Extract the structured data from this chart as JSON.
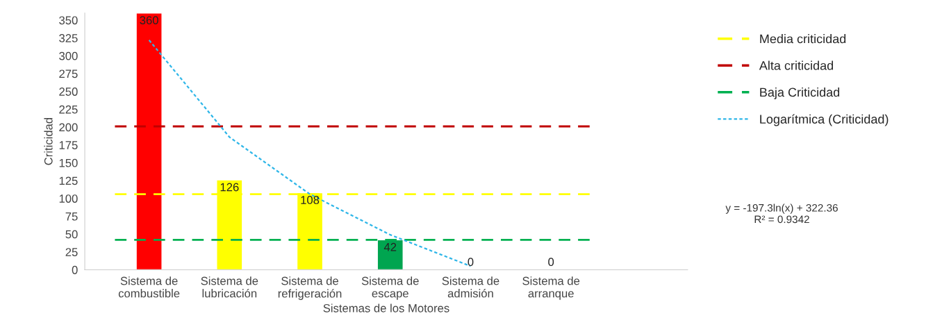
{
  "chart_data": {
    "type": "bar",
    "xlabel": "Sistemas de los Motores",
    "ylabel": "Criticidad",
    "categories": [
      "Sistema de\ncombustible",
      "Sistema de\nlubricación",
      "Sistema de\nrefrigeración",
      "Sistema de\nescape",
      "Sistema de\nadmisión",
      "Sistema de\narranque"
    ],
    "series": [
      {
        "colors": [
          "#ff0000",
          "#ffff00",
          "#ffff00",
          "#00a550",
          null,
          null
        ],
        "values": [
          360,
          126,
          108,
          42,
          0,
          0
        ],
        "value_labels": [
          "360",
          "126",
          "108",
          "42",
          "0",
          "0"
        ]
      },
      {
        "name": "Logarítmica (Criticidad)",
        "type": "line",
        "color": "#2eb6e8",
        "line_style": "dotted",
        "values": [
          322,
          186,
          106,
          49,
          5,
          null
        ]
      }
    ],
    "ref_lines": [
      {
        "axis": "y",
        "value": 106,
        "label": "Media criticidad",
        "color": "#ffff00",
        "line_style": "dashed"
      },
      {
        "axis": "y",
        "value": 201,
        "label": "Alta criticidad",
        "color": "#c00000",
        "line_style": "dashed"
      },
      {
        "axis": "y",
        "value": 42,
        "label": "Baja Criticidad",
        "color": "#00b050",
        "line_style": "dashed"
      }
    ],
    "annotations": [
      "y = -197.3ln(x) + 322.36\nR² = 0.9342"
    ],
    "ylim": [
      0,
      360
    ],
    "yticks": [
      0,
      25,
      50,
      75,
      100,
      125,
      150,
      175,
      200,
      225,
      250,
      275,
      300,
      325,
      350
    ],
    "grid": false,
    "legend": "right"
  }
}
